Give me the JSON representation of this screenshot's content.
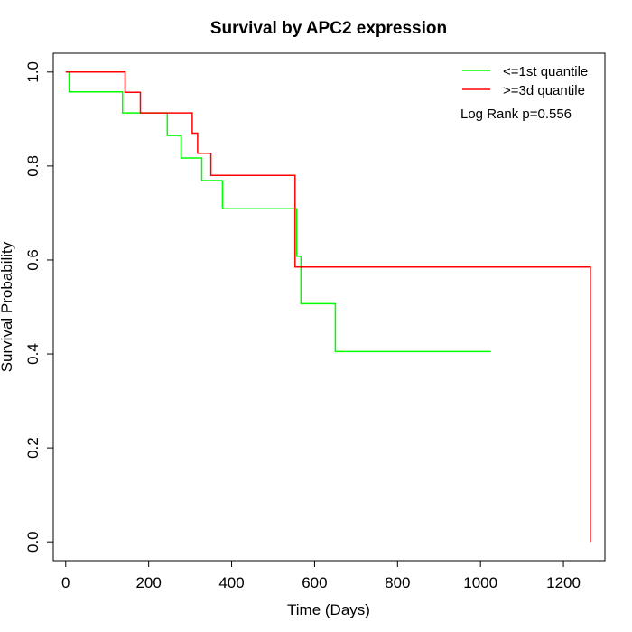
{
  "chart_data": {
    "type": "line",
    "title": "Survival by APC2 expression",
    "xlabel": "Time (Days)",
    "ylabel": "Survival Probability",
    "xlim": [
      -30,
      1300
    ],
    "ylim": [
      -0.04,
      1.04
    ],
    "xticks": [
      "0",
      "200",
      "400",
      "600",
      "800",
      "1000",
      "1200"
    ],
    "yticks": [
      "0.0",
      "0.2",
      "0.4",
      "0.6",
      "0.8",
      "1.0"
    ],
    "legend_position": "top-right",
    "annotation": "Log Rank p=0.556",
    "grid": false,
    "series": [
      {
        "name": "<=1st quantile",
        "color": "#00ff00",
        "step": true,
        "points": [
          [
            0,
            1.0
          ],
          [
            8,
            1.0
          ],
          [
            8,
            0.958
          ],
          [
            137,
            0.958
          ],
          [
            137,
            0.913
          ],
          [
            245,
            0.913
          ],
          [
            245,
            0.865
          ],
          [
            278,
            0.865
          ],
          [
            278,
            0.817
          ],
          [
            328,
            0.817
          ],
          [
            328,
            0.769
          ],
          [
            378,
            0.769
          ],
          [
            378,
            0.709
          ],
          [
            557,
            0.709
          ],
          [
            557,
            0.608
          ],
          [
            567,
            0.608
          ],
          [
            567,
            0.507
          ],
          [
            650,
            0.507
          ],
          [
            650,
            0.405
          ],
          [
            1025,
            0.405
          ]
        ]
      },
      {
        "name": ">=3d quantile",
        "color": "#ff0000",
        "step": true,
        "points": [
          [
            0,
            1.0
          ],
          [
            143,
            1.0
          ],
          [
            143,
            0.957
          ],
          [
            180,
            0.957
          ],
          [
            180,
            0.913
          ],
          [
            305,
            0.913
          ],
          [
            305,
            0.87
          ],
          [
            318,
            0.87
          ],
          [
            318,
            0.827
          ],
          [
            350,
            0.827
          ],
          [
            350,
            0.78
          ],
          [
            553,
            0.78
          ],
          [
            553,
            0.585
          ],
          [
            1265,
            0.585
          ],
          [
            1265,
            0.0
          ]
        ]
      }
    ]
  }
}
